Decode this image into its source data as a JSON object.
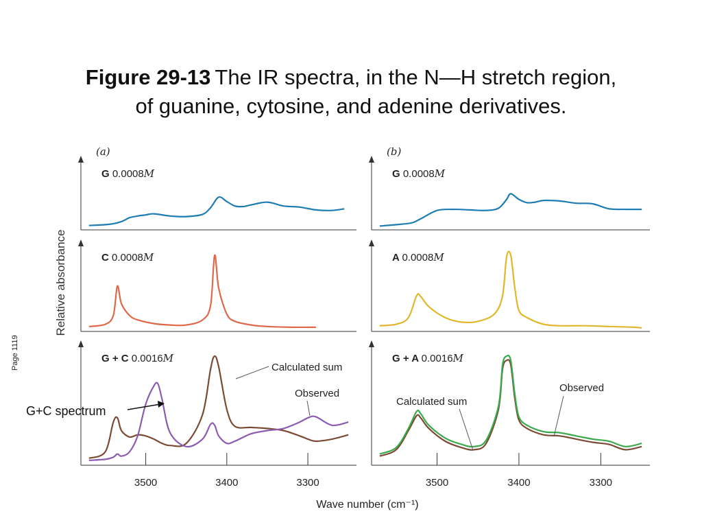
{
  "title": {
    "figure": "Figure 29-13",
    "text_line1": "The IR spectra, in the N—H stretch region,",
    "text_line2": "of guanine, cytosine, and adenine derivatives."
  },
  "page_label": "Page 1119",
  "annotation": {
    "gc_spectrum": "G+C spectrum"
  },
  "ylabel": "Relative absorbance",
  "xlabel": "Wave number (cm⁻¹)",
  "colors": {
    "G": "#1c7db2",
    "C": "#e0674a",
    "A": "#e0b72a",
    "calculated_gc": "#7b4a33",
    "observed_gc": "#8a5bb0",
    "calculated_ga": "#7b4a33",
    "observed_ga": "#3aaa4c",
    "axis": "#333333"
  },
  "chart_data": [
    {
      "type": "line",
      "panel": "(a)",
      "subplot": "top",
      "label_bold": "G",
      "label_value": "0.0008",
      "label_unit": "M",
      "x": [
        3570,
        3545,
        3530,
        3520,
        3510,
        3500,
        3490,
        3470,
        3450,
        3430,
        3420,
        3410,
        3400,
        3390,
        3380,
        3370,
        3350,
        3330,
        3310,
        3290,
        3270,
        3255
      ],
      "series": [
        {
          "color_key": "G",
          "values": [
            0.03,
            0.05,
            0.1,
            0.17,
            0.2,
            0.22,
            0.24,
            0.2,
            0.19,
            0.23,
            0.35,
            0.54,
            0.46,
            0.38,
            0.37,
            0.4,
            0.45,
            0.38,
            0.36,
            0.31,
            0.3,
            0.33
          ]
        }
      ]
    },
    {
      "type": "line",
      "panel": "(a)",
      "subplot": "middle",
      "label_bold": "C",
      "label_value": "0.0008",
      "label_unit": "M",
      "x": [
        3570,
        3550,
        3540,
        3535,
        3530,
        3520,
        3510,
        3490,
        3470,
        3450,
        3430,
        3420,
        3415,
        3410,
        3400,
        3390,
        3370,
        3350,
        3320,
        3290
      ],
      "series": [
        {
          "color_key": "C",
          "values": [
            0.03,
            0.06,
            0.18,
            0.58,
            0.34,
            0.18,
            0.12,
            0.07,
            0.05,
            0.05,
            0.12,
            0.32,
            1.0,
            0.55,
            0.2,
            0.1,
            0.05,
            0.03,
            0.02,
            0.02
          ]
        }
      ]
    },
    {
      "type": "line",
      "panel": "(a)",
      "subplot": "bottom",
      "label_bold": "G + C",
      "label_value": "0.0016",
      "label_unit": "M",
      "annotations": [
        "Calculated sum",
        "Observed"
      ],
      "x": [
        3570,
        3550,
        3540,
        3535,
        3530,
        3520,
        3510,
        3500,
        3490,
        3485,
        3480,
        3470,
        3450,
        3430,
        3420,
        3415,
        3410,
        3400,
        3390,
        3370,
        3350,
        3330,
        3310,
        3300,
        3290,
        3270,
        3250
      ],
      "series": [
        {
          "name": "Calculated sum",
          "color_key": "calculated_gc",
          "values": [
            0.04,
            0.1,
            0.38,
            0.42,
            0.3,
            0.24,
            0.26,
            0.25,
            0.22,
            0.2,
            0.18,
            0.16,
            0.18,
            0.45,
            0.88,
            1.0,
            0.9,
            0.5,
            0.34,
            0.33,
            0.32,
            0.3,
            0.25,
            0.22,
            0.2,
            0.22,
            0.26
          ]
        },
        {
          "name": "Observed",
          "color_key": "observed_gc",
          "values": [
            0.02,
            0.03,
            0.05,
            0.08,
            0.06,
            0.1,
            0.25,
            0.55,
            0.72,
            0.74,
            0.6,
            0.28,
            0.15,
            0.22,
            0.36,
            0.35,
            0.25,
            0.18,
            0.2,
            0.27,
            0.3,
            0.32,
            0.38,
            0.42,
            0.43,
            0.35,
            0.38
          ]
        }
      ]
    },
    {
      "type": "line",
      "panel": "(b)",
      "subplot": "top",
      "label_bold": "G",
      "label_value": "0.0008",
      "label_unit": "M",
      "x": [
        3570,
        3545,
        3530,
        3520,
        3500,
        3480,
        3460,
        3440,
        3425,
        3415,
        3410,
        3400,
        3390,
        3380,
        3370,
        3350,
        3330,
        3310,
        3290,
        3270,
        3250
      ],
      "series": [
        {
          "color_key": "G",
          "values": [
            0.02,
            0.05,
            0.08,
            0.15,
            0.3,
            0.32,
            0.31,
            0.3,
            0.34,
            0.5,
            0.6,
            0.5,
            0.44,
            0.45,
            0.48,
            0.47,
            0.43,
            0.42,
            0.33,
            0.32,
            0.32
          ]
        }
      ]
    },
    {
      "type": "line",
      "panel": "(b)",
      "subplot": "middle",
      "label_bold": "A",
      "label_value": "0.0008",
      "label_unit": "M",
      "x": [
        3570,
        3550,
        3535,
        3525,
        3520,
        3510,
        3490,
        3470,
        3450,
        3430,
        3420,
        3415,
        3410,
        3405,
        3400,
        3390,
        3370,
        3350,
        3320,
        3290,
        3260,
        3250
      ],
      "series": [
        {
          "color_key": "A",
          "values": [
            0.04,
            0.06,
            0.15,
            0.45,
            0.44,
            0.3,
            0.15,
            0.09,
            0.1,
            0.2,
            0.45,
            0.98,
            1.0,
            0.55,
            0.25,
            0.15,
            0.06,
            0.04,
            0.04,
            0.03,
            0.02,
            0.01
          ]
        }
      ]
    },
    {
      "type": "line",
      "panel": "(b)",
      "subplot": "bottom",
      "label_bold": "G + A",
      "label_value": "0.0016",
      "label_unit": "M",
      "annotations": [
        "Calculated sum",
        "Observed"
      ],
      "x": [
        3570,
        3550,
        3535,
        3525,
        3520,
        3510,
        3490,
        3470,
        3455,
        3440,
        3425,
        3420,
        3415,
        3410,
        3405,
        3400,
        3390,
        3370,
        3350,
        3330,
        3310,
        3290,
        3270,
        3250
      ],
      "series": [
        {
          "name": "Calculated sum",
          "color_key": "calculated_ga",
          "values": [
            0.06,
            0.12,
            0.3,
            0.44,
            0.42,
            0.32,
            0.2,
            0.14,
            0.12,
            0.18,
            0.5,
            0.88,
            0.96,
            0.92,
            0.6,
            0.4,
            0.32,
            0.26,
            0.25,
            0.22,
            0.19,
            0.17,
            0.12,
            0.15
          ]
        },
        {
          "name": "Observed",
          "color_key": "observed_ga",
          "values": [
            0.08,
            0.14,
            0.32,
            0.48,
            0.46,
            0.35,
            0.23,
            0.17,
            0.15,
            0.21,
            0.53,
            0.92,
            1.0,
            0.96,
            0.64,
            0.43,
            0.35,
            0.29,
            0.28,
            0.25,
            0.22,
            0.2,
            0.15,
            0.18
          ]
        }
      ]
    }
  ],
  "x_axis": {
    "min": 3580,
    "max": 3240,
    "ticks": [
      "3500",
      "3400",
      "3300"
    ],
    "tick_values": [
      3500,
      3400,
      3300
    ]
  },
  "panel_labels": [
    "(a)",
    "(b)"
  ]
}
